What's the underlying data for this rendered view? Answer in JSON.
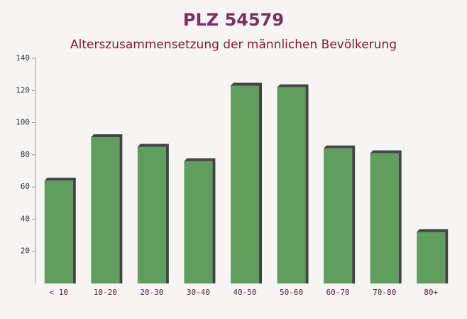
{
  "chart_data": {
    "type": "bar",
    "title": "PLZ 54579",
    "subtitle": "Alterszusammensetzung der männlichen Bevölkerung",
    "categories": [
      "< 10",
      "10-20",
      "20-30",
      "30-40",
      "40-50",
      "50-60",
      "60-70",
      "70-80",
      "80+"
    ],
    "values": [
      64,
      91,
      85,
      76,
      123,
      122,
      84,
      81,
      32
    ],
    "color": "#5f9e5f",
    "ylim": [
      0,
      140
    ],
    "yticks": [
      20,
      40,
      60,
      80,
      100,
      120,
      140
    ],
    "grid": false
  }
}
